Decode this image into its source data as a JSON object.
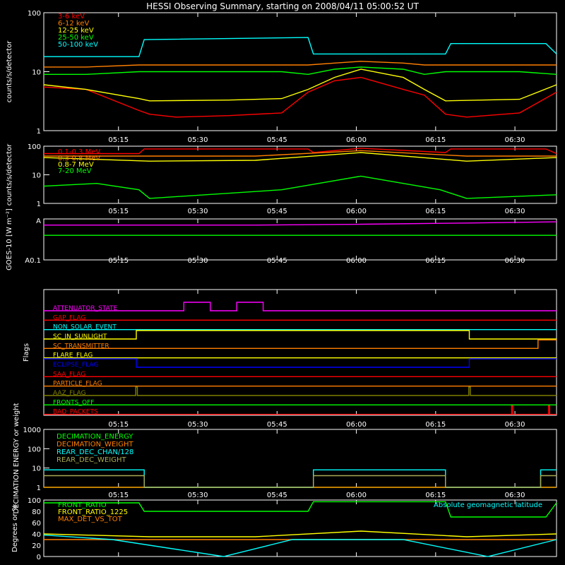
{
  "title": "HESSI Observing Summary, starting on 2008/04/11 05:00:52 UT",
  "time_ticks": [
    "05:15",
    "05:30",
    "05:45",
    "06:00",
    "06:15",
    "06:30"
  ],
  "time_tick_minutes": [
    14.13,
    29.13,
    44.13,
    59.13,
    74.13,
    89.13
  ],
  "time_range_minutes": [
    0,
    97
  ],
  "chart_data": [
    {
      "type": "line",
      "id": "counts_lo",
      "ylabel": "counts/s/detector",
      "yscale": "log",
      "ylim": [
        1,
        100
      ],
      "yticks": [
        "1",
        "10",
        "100"
      ],
      "series": [
        {
          "name": "3-6 keV",
          "color": "#ff0000",
          "x": [
            0,
            8,
            18,
            20,
            25,
            35,
            45,
            50,
            55,
            60,
            68,
            72,
            76,
            80,
            90,
            97
          ],
          "y": [
            5.5,
            5,
            2.2,
            1.9,
            1.7,
            1.8,
            2.0,
            4.5,
            7,
            8,
            5,
            4,
            1.9,
            1.7,
            2.0,
            4.5
          ]
        },
        {
          "name": "6-12 keV",
          "color": "#ff7f00",
          "x": [
            0,
            8,
            18,
            20,
            35,
            45,
            50,
            55,
            60,
            68,
            72,
            76,
            90,
            97
          ],
          "y": [
            12,
            12,
            13,
            13,
            13,
            13,
            13,
            14,
            15,
            14,
            13,
            13,
            13,
            13
          ]
        },
        {
          "name": "12-25 keV",
          "color": "#ffff00",
          "x": [
            0,
            8,
            18,
            20,
            35,
            45,
            50,
            55,
            60,
            68,
            72,
            76,
            90,
            97
          ],
          "y": [
            6,
            5,
            3.5,
            3.2,
            3.3,
            3.5,
            5,
            8,
            11,
            8,
            5,
            3.2,
            3.4,
            6
          ]
        },
        {
          "name": "25-50 keV",
          "color": "#00ff00",
          "x": [
            0,
            8,
            18,
            20,
            35,
            45,
            50,
            55,
            60,
            68,
            72,
            76,
            90,
            97
          ],
          "y": [
            9,
            9,
            10,
            10,
            10,
            10,
            9,
            11,
            12,
            11,
            9,
            10,
            10,
            9
          ]
        },
        {
          "name": "50-100 keV",
          "color": "#00ffff",
          "x": [
            0,
            18,
            19,
            50,
            51,
            76,
            77,
            95,
            97
          ],
          "y": [
            18,
            18,
            35,
            38,
            20,
            20,
            30,
            30,
            20
          ]
        }
      ]
    },
    {
      "type": "line",
      "id": "counts_hi",
      "ylabel": "counts/s/detector",
      "yscale": "log",
      "ylim": [
        1,
        100
      ],
      "yticks": [
        "1",
        "10",
        "100"
      ],
      "series": [
        {
          "name": "0.1-0.3 MeV",
          "color": "#ff0000",
          "x": [
            0,
            18,
            19,
            50,
            51,
            60,
            76,
            77,
            95,
            97
          ],
          "y": [
            55,
            55,
            80,
            80,
            60,
            85,
            60,
            80,
            80,
            55
          ]
        },
        {
          "name": "0.3-0.8 MeV",
          "color": "#ff7f00",
          "x": [
            0,
            20,
            40,
            60,
            80,
            97
          ],
          "y": [
            45,
            45,
            45,
            70,
            45,
            45
          ]
        },
        {
          "name": "0.8-7 MeV",
          "color": "#ffff00",
          "x": [
            0,
            20,
            40,
            60,
            80,
            97
          ],
          "y": [
            40,
            30,
            32,
            60,
            30,
            40
          ]
        },
        {
          "name": "7-20 MeV",
          "color": "#00ff00",
          "x": [
            0,
            10,
            18,
            20,
            45,
            60,
            75,
            80,
            97
          ],
          "y": [
            4,
            5,
            3,
            1.5,
            3,
            9,
            3,
            1.5,
            2
          ]
        }
      ]
    },
    {
      "type": "line",
      "id": "goes",
      "ylabel": "GOES-10 [W m⁻²]",
      "yscale": "log",
      "yticks": [
        "A0.1",
        "A"
      ],
      "series": [
        {
          "name": "goes-long",
          "color": "#ff00ff",
          "x": [
            0,
            40,
            60,
            80,
            97
          ],
          "y": [
            0.85,
            0.85,
            0.87,
            0.9,
            0.93
          ]
        },
        {
          "name": "goes-short",
          "color": "#00ff00",
          "x": [
            0,
            97
          ],
          "y": [
            0.6,
            0.6
          ]
        }
      ]
    },
    {
      "type": "line",
      "id": "flags",
      "ylabel": "Flags",
      "series": [
        {
          "name": "ATTENUATOR_STATE",
          "color": "#ff00ff",
          "x": [
            0,
            26.5,
            26.5,
            31.5,
            31.5,
            36.5,
            36.5,
            41.5,
            41.5,
            97
          ],
          "y": [
            0,
            0,
            1,
            1,
            0,
            0,
            1,
            1,
            0,
            0
          ]
        },
        {
          "name": "GAP_FLAG",
          "color": "#ff0000",
          "x": [
            0,
            97
          ],
          "y": [
            0,
            0
          ]
        },
        {
          "name": "NON_SOLAR_EVENT",
          "color": "#00ffff",
          "x": [
            0,
            97
          ],
          "y": [
            0,
            0
          ]
        },
        {
          "name": "SC_IN_SUNLIGHT",
          "color": "#ffff00",
          "x": [
            0,
            17.5,
            17.5,
            80.5,
            80.5,
            97
          ],
          "y": [
            0,
            0,
            1,
            1,
            0,
            0
          ]
        },
        {
          "name": "SC_TRANSMITTER",
          "color": "#ff7f00",
          "x": [
            0,
            93.5,
            93.5,
            97
          ],
          "y": [
            0,
            0,
            1,
            1
          ]
        },
        {
          "name": "FLARE_FLAG",
          "color": "#ffff00",
          "x": [
            0,
            97
          ],
          "y": [
            0,
            0
          ]
        },
        {
          "name": "ECLIPSE_FLAG",
          "color": "#0000ff",
          "x": [
            0,
            17.5,
            17.5,
            80.5,
            80.5,
            97
          ],
          "y": [
            1,
            1,
            0,
            0,
            1,
            1
          ]
        },
        {
          "name": "SAA_FLAG",
          "color": "#ff0000",
          "x": [
            0,
            97
          ],
          "y": [
            0,
            0
          ]
        },
        {
          "name": "PARTICLE_FLAG",
          "color": "#ff7f00",
          "x": [
            0,
            97
          ],
          "y": [
            0,
            0
          ]
        },
        {
          "name": "AAZ_FLAG",
          "color": "#808000",
          "x": [
            0,
            17.4,
            17.4,
            17.7,
            17.7,
            80.4,
            80.4,
            80.7,
            80.7,
            97
          ],
          "y": [
            0,
            0,
            1,
            1,
            0,
            0,
            1,
            1,
            0,
            0
          ]
        },
        {
          "name": "FRONTS_OFF",
          "color": "#00ff00",
          "x": [
            0,
            97
          ],
          "y": [
            0,
            0
          ]
        },
        {
          "name": "BAD_PACKETS",
          "color": "#ff0000",
          "x": [
            0,
            88.5,
            88.5,
            88.7,
            88.7,
            95.5,
            95.5,
            95.7,
            95.7,
            97
          ],
          "y": [
            0,
            0,
            1,
            1,
            0,
            0,
            1,
            1,
            0,
            0
          ]
        }
      ]
    },
    {
      "type": "line",
      "id": "decimation",
      "ylabel": "DECIMATION ENERGY or weight",
      "yscale": "log",
      "ylim": [
        1,
        1000
      ],
      "yticks": [
        "1",
        "10",
        "100",
        "1000"
      ],
      "series": [
        {
          "name": "DECIMATION_ENERGY",
          "color": "#00ff00",
          "x": [
            0,
            97
          ],
          "y": [
            1,
            1
          ]
        },
        {
          "name": "DECIMATION_WEIGHT",
          "color": "#ff7f00",
          "x": [
            0,
            97
          ],
          "y": [
            1,
            1
          ]
        },
        {
          "name": "REAR_DEC_CHAN/128",
          "color": "#00ffff",
          "x": [
            0,
            19,
            19,
            51,
            51,
            76,
            76,
            94,
            94,
            97
          ],
          "y": [
            8,
            8,
            1,
            1,
            8,
            8,
            1,
            1,
            8,
            8
          ]
        },
        {
          "name": "REAR_DEC_WEIGHT",
          "color": "#aaaa55",
          "x": [
            0,
            19,
            19,
            51,
            51,
            76,
            76,
            94,
            94,
            97
          ],
          "y": [
            4,
            4,
            1,
            1,
            4,
            4,
            1,
            1,
            4,
            4
          ]
        }
      ]
    },
    {
      "type": "line",
      "id": "ratios",
      "ylabel": "Degrees or %",
      "ylim": [
        0,
        100
      ],
      "yticks": [
        "0",
        "20",
        "40",
        "60",
        "80",
        "100"
      ],
      "series": [
        {
          "name": "FRONT_RATIO",
          "color": "#00ff00",
          "x": [
            0,
            18,
            19,
            50,
            51,
            76,
            77,
            95,
            97
          ],
          "y": [
            95,
            95,
            80,
            80,
            97,
            97,
            70,
            70,
            95
          ]
        },
        {
          "name": "FRONT_RATIO_1225",
          "color": "#ffff00",
          "x": [
            0,
            20,
            40,
            60,
            80,
            97
          ],
          "y": [
            40,
            35,
            35,
            45,
            35,
            40
          ]
        },
        {
          "name": "MAX_DET_VS_TOT",
          "color": "#ff7f00",
          "x": [
            0,
            97
          ],
          "y": [
            30,
            30
          ]
        },
        {
          "name": "Absolute geomagnetic latitude",
          "color": "#00ffff",
          "x": [
            0,
            13,
            34,
            47,
            68,
            84,
            97
          ],
          "y": [
            38,
            30,
            0,
            30,
            30,
            0,
            30
          ]
        }
      ]
    }
  ]
}
